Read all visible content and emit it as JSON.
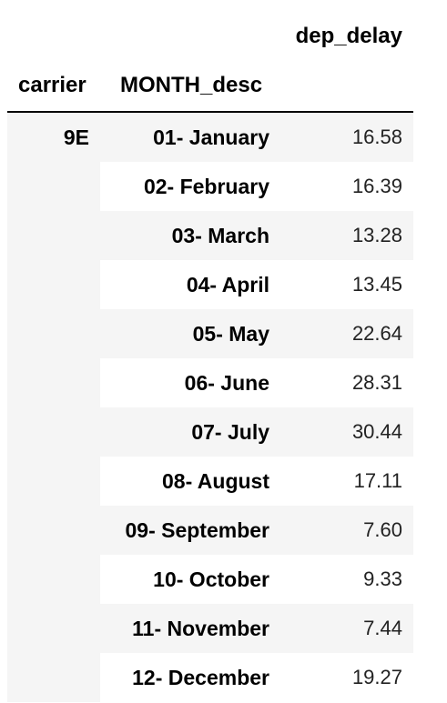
{
  "table": {
    "value_header": "dep_delay",
    "index_headers": [
      "carrier",
      "MONTH_desc"
    ],
    "carrier": "9E",
    "rows": [
      {
        "month": "01- January",
        "dep_delay": "16.58"
      },
      {
        "month": "02- February",
        "dep_delay": "16.39"
      },
      {
        "month": "03- March",
        "dep_delay": "13.28"
      },
      {
        "month": "04- April",
        "dep_delay": "13.45"
      },
      {
        "month": "05- May",
        "dep_delay": "22.64"
      },
      {
        "month": "06- June",
        "dep_delay": "28.31"
      },
      {
        "month": "07- July",
        "dep_delay": "30.44"
      },
      {
        "month": "08- August",
        "dep_delay": "17.11"
      },
      {
        "month": "09- September",
        "dep_delay": "7.60"
      },
      {
        "month": "10- October",
        "dep_delay": "9.33"
      },
      {
        "month": "11- November",
        "dep_delay": "7.44"
      },
      {
        "month": "12- December",
        "dep_delay": "19.27"
      }
    ]
  },
  "colors": {
    "stripe": "#f5f5f5",
    "rule": "#000000"
  }
}
